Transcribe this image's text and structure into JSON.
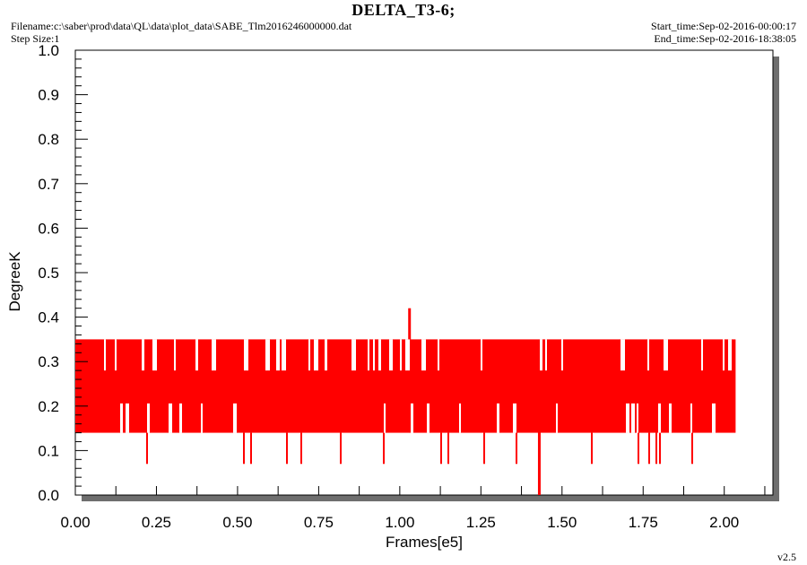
{
  "header": {
    "title": "DELTA_T3-6;",
    "filename": "Filename:c:\\saber\\prod\\data\\QL\\data\\plot_data\\SABE_Tlm2016246000000.dat",
    "step_size": "Step Size:1",
    "start_time": "Start_time:Sep-02-2016-00:00:17",
    "end_time": "End_time:Sep-02-2016-18:38:05",
    "version": "v2.5"
  },
  "colors": {
    "series": "#ff0000",
    "frame": "#000000",
    "shadow": "#6e6e6e"
  },
  "chart_data": {
    "type": "line",
    "title": "DELTA_T3-6;",
    "xlabel": "Frames[e5]",
    "ylabel": "DegreeK",
    "xlim": [
      0.0,
      2.15
    ],
    "ylim": [
      0.0,
      1.0
    ],
    "x_ticks": [
      "0.00",
      "0.25",
      "0.50",
      "0.75",
      "1.00",
      "1.25",
      "1.50",
      "1.75",
      "2.00"
    ],
    "y_ticks": [
      "0.0",
      "0.1",
      "0.2",
      "0.3",
      "0.4",
      "0.5",
      "0.6",
      "0.7",
      "0.8",
      "0.9",
      "1.0"
    ],
    "grid": false,
    "series": [
      {
        "color": "#ff0000",
        "x_range": [
          0.0,
          2.035
        ],
        "band_min": 0.14,
        "band_max": 0.35,
        "levels": [
          0.07,
          0.14,
          0.21,
          0.28,
          0.35
        ],
        "notable_points": [
          {
            "x": 1.03,
            "y": 0.42
          },
          {
            "x": 1.43,
            "y": 0.0
          }
        ]
      }
    ]
  }
}
